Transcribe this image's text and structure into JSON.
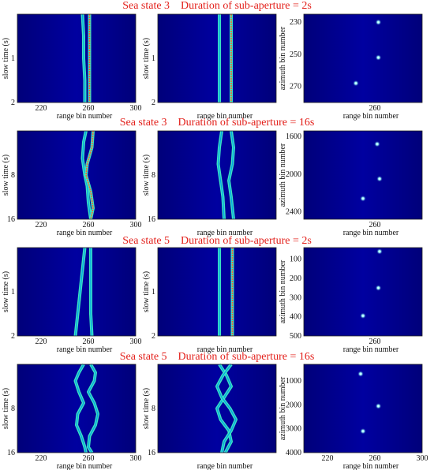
{
  "colors": {
    "background": "#00008f",
    "track": "#3ff0c2",
    "track_core": "#00a0e8",
    "hot": "#ff6030",
    "title": "#e3201b",
    "scatter": "#ffffff"
  },
  "chart_data": [
    {
      "title": "Sea state 3    Duration of sub-aperture = 2s",
      "panels": [
        {
          "type": "heatmap",
          "xlabel": "range bin number",
          "ylabel": "slow time (s)",
          "xticks": [
            220,
            260,
            300
          ],
          "yticks": [
            "1",
            "2"
          ],
          "xlim": [
            200,
            300
          ],
          "ylim": [
            0,
            2
          ],
          "tracks": [
            {
              "x": [
                [
                  0,
                  255
                ],
                [
                  0.5,
                  256
                ],
                [
                  1,
                  256
                ],
                [
                  1.5,
                  257
                ],
                [
                  2,
                  257
                ]
              ]
            },
            {
              "x": [
                [
                  0,
                  261
                ],
                [
                  2,
                  261
                ]
              ],
              "hot": true
            }
          ]
        },
        {
          "type": "heatmap",
          "xlabel": "range bin number",
          "ylabel": "slow time (s)",
          "xticks": [],
          "yticks": [
            "1",
            "2"
          ],
          "xlim": [
            200,
            300
          ],
          "ylim": [
            0,
            2
          ],
          "tracks": [
            {
              "x": [
                [
                  0,
                  252
                ],
                [
                  2,
                  252
                ]
              ]
            },
            {
              "x": [
                [
                  0,
                  262
                ],
                [
                  2,
                  262
                ]
              ],
              "hot": true
            }
          ]
        },
        {
          "type": "scatter",
          "xlabel": "range bin number",
          "ylabel": "azimuth bin number",
          "xticks": [
            260
          ],
          "yticks": [
            "230",
            "250",
            "270"
          ],
          "xlim": [
            200,
            300
          ],
          "ylim": [
            225,
            280
          ],
          "points": [
            {
              "x": 263,
              "y": 230
            },
            {
              "x": 263,
              "y": 252
            },
            {
              "x": 244,
              "y": 268
            }
          ]
        }
      ]
    },
    {
      "title": "Sea state 3    Duration of sub-aperture = 16s",
      "panels": [
        {
          "type": "heatmap",
          "xlabel": "range bin number",
          "ylabel": "slow time (s)",
          "xticks": [
            220,
            260,
            300
          ],
          "yticks": [
            "8",
            "16"
          ],
          "xlim": [
            200,
            300
          ],
          "ylim": [
            0,
            16
          ],
          "tracks": [
            {
              "x": [
                [
                  0,
                  258
                ],
                [
                  2,
                  256
                ],
                [
                  5,
                  255
                ],
                [
                  8,
                  257
                ],
                [
                  10,
                  259
                ],
                [
                  13,
                  260
                ],
                [
                  16,
                  262
                ]
              ]
            },
            {
              "x": [
                [
                  0,
                  264
                ],
                [
                  3,
                  263
                ],
                [
                  6,
                  259
                ],
                [
                  8,
                  258
                ],
                [
                  11,
                  262
                ],
                [
                  14,
                  264
                ],
                [
                  16,
                  262
                ]
              ],
              "hot": true
            }
          ]
        },
        {
          "type": "heatmap",
          "xlabel": "range bin number",
          "ylabel": "slow time (s)",
          "xticks": [],
          "yticks": [
            "8",
            "16"
          ],
          "xlim": [
            200,
            300
          ],
          "ylim": [
            0,
            16
          ],
          "tracks": [
            {
              "x": [
                [
                  0,
                  254
                ],
                [
                  3,
                  252
                ],
                [
                  6,
                  251
                ],
                [
                  9,
                  253
                ],
                [
                  12,
                  255
                ],
                [
                  16,
                  256
                ]
              ]
            },
            {
              "x": [
                [
                  0,
                  262
                ],
                [
                  3,
                  264
                ],
                [
                  6,
                  263
                ],
                [
                  9,
                  260
                ],
                [
                  12,
                  262
                ],
                [
                  16,
                  264
                ]
              ]
            }
          ]
        },
        {
          "type": "scatter",
          "xlabel": "range bin number",
          "ylabel": "azimuth bin number",
          "xticks": [
            260
          ],
          "yticks": [
            "1600",
            "2000",
            "2400"
          ],
          "xlim": [
            200,
            300
          ],
          "ylim": [
            1540,
            2480
          ],
          "points": [
            {
              "x": 262,
              "y": 1680
            },
            {
              "x": 264,
              "y": 2050
            },
            {
              "x": 250,
              "y": 2260
            }
          ]
        }
      ]
    },
    {
      "title": "Sea state 5    Duration of sub-aperture = 2s",
      "panels": [
        {
          "type": "heatmap",
          "xlabel": "range bin number",
          "ylabel": "slow time (s)",
          "xticks": [
            220,
            260,
            300
          ],
          "yticks": [
            "1",
            "2"
          ],
          "xlim": [
            200,
            300
          ],
          "ylim": [
            0,
            2
          ],
          "tracks": [
            {
              "x": [
                [
                  0,
                  257
                ],
                [
                  0.5,
                  255
                ],
                [
                  1,
                  253
                ],
                [
                  1.5,
                  251
                ],
                [
                  2,
                  249
                ]
              ]
            },
            {
              "x": [
                [
                  0,
                  262
                ],
                [
                  0.5,
                  262
                ],
                [
                  1,
                  262
                ],
                [
                  1.5,
                  262
                ],
                [
                  2,
                  263
                ]
              ]
            }
          ]
        },
        {
          "type": "heatmap",
          "xlabel": "range bin number",
          "ylabel": "slow time (s)",
          "xticks": [],
          "yticks": [
            "1",
            "2"
          ],
          "xlim": [
            200,
            300
          ],
          "ylim": [
            0,
            2
          ],
          "tracks": [
            {
              "x": [
                [
                  0,
                  252
                ],
                [
                  2,
                  252
                ]
              ]
            },
            {
              "x": [
                [
                  0,
                  263
                ],
                [
                  2,
                  263
                ]
              ],
              "hot": true
            }
          ]
        },
        {
          "type": "scatter",
          "xlabel": "range bin number",
          "ylabel": "azimuth bin number",
          "xticks": [
            260
          ],
          "yticks": [
            "100",
            "200",
            "300",
            "400",
            "500"
          ],
          "xlim": [
            200,
            300
          ],
          "ylim": [
            40,
            500
          ],
          "points": [
            {
              "x": 264,
              "y": 60
            },
            {
              "x": 263,
              "y": 250
            },
            {
              "x": 250,
              "y": 395
            }
          ]
        }
      ]
    },
    {
      "title": "Sea state 5    Duration of sub-aperture = 16s",
      "panels": [
        {
          "type": "heatmap",
          "xlabel": "range bin number",
          "ylabel": "slow time (s)",
          "xticks": [
            220,
            260,
            300
          ],
          "yticks": [
            "8",
            "16"
          ],
          "xlim": [
            200,
            300
          ],
          "ylim": [
            0,
            16
          ],
          "tracks": [
            {
              "x": [
                [
                  0,
                  256
                ],
                [
                  1.5,
                  252
                ],
                [
                  3,
                  249
                ],
                [
                  5,
                  252
                ],
                [
                  7,
                  256
                ],
                [
                  9,
                  251
                ],
                [
                  11,
                  250
                ],
                [
                  13,
                  254
                ],
                [
                  15,
                  257
                ],
                [
                  16,
                  258
                ]
              ]
            },
            {
              "x": [
                [
                  0,
                  262
                ],
                [
                  1.5,
                  266
                ],
                [
                  3,
                  265
                ],
                [
                  5,
                  260
                ],
                [
                  7,
                  265
                ],
                [
                  9,
                  268
                ],
                [
                  11,
                  266
                ],
                [
                  13,
                  261
                ],
                [
                  15,
                  260
                ],
                [
                  16,
                  263
                ]
              ]
            }
          ]
        },
        {
          "type": "heatmap",
          "xlabel": "range bin number",
          "ylabel": "slow time (s)",
          "xticks": [],
          "yticks": [
            "8",
            "16"
          ],
          "xlim": [
            200,
            300
          ],
          "ylim": [
            0,
            16
          ],
          "tracks": [
            {
              "x": [
                [
                  0,
                  252
                ],
                [
                  2,
                  258
                ],
                [
                  4,
                  262
                ],
                [
                  6,
                  256
                ],
                [
                  8,
                  250
                ],
                [
                  10,
                  253
                ],
                [
                  12,
                  260
                ],
                [
                  14,
                  262
                ],
                [
                  16,
                  257
                ]
              ]
            },
            {
              "x": [
                [
                  0,
                  262
                ],
                [
                  2,
                  255
                ],
                [
                  4,
                  250
                ],
                [
                  6,
                  254
                ],
                [
                  8,
                  261
                ],
                [
                  10,
                  266
                ],
                [
                  12,
                  262
                ],
                [
                  14,
                  256
                ],
                [
                  16,
                  254
                ]
              ]
            }
          ]
        },
        {
          "type": "scatter",
          "xlabel": "range bin number",
          "ylabel": "azimuth bin number",
          "xticks": [
            220,
            260,
            300
          ],
          "yticks": [
            "1000",
            "2000",
            "3000",
            "4000"
          ],
          "xlim": [
            200,
            300
          ],
          "ylim": [
            300,
            4000
          ],
          "points": [
            {
              "x": 248,
              "y": 700
            },
            {
              "x": 263,
              "y": 2050
            },
            {
              "x": 250,
              "y": 3100
            }
          ]
        }
      ]
    }
  ]
}
